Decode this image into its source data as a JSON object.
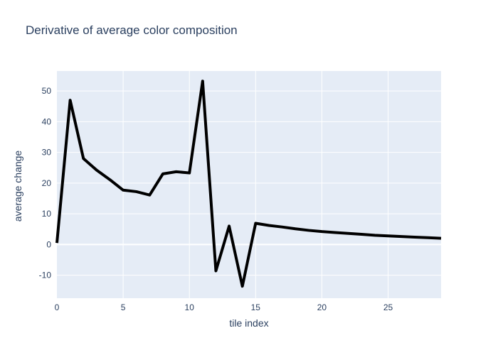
{
  "chart_data": {
    "type": "line",
    "title": "Derivative of average color composition",
    "xlabel": "tile index",
    "ylabel": "average change",
    "xlim": [
      0,
      29
    ],
    "ylim": [
      -17.5,
      56.5
    ],
    "x_ticks": [
      0,
      5,
      10,
      15,
      20,
      25
    ],
    "y_ticks": [
      -10,
      0,
      10,
      20,
      30,
      40,
      50
    ],
    "grid": true,
    "line_color": "#000000",
    "plot_bg": "#e5ecf6",
    "series": [
      {
        "x": [
          0,
          1,
          2,
          3,
          4,
          5,
          6,
          7,
          8,
          9,
          10,
          11,
          12,
          13,
          14,
          15,
          16,
          17,
          18,
          19,
          20,
          21,
          22,
          23,
          24,
          25,
          26,
          27,
          28,
          29
        ],
        "values": [
          0.5,
          47,
          28,
          24.2,
          21.1,
          17.7,
          17.2,
          16.1,
          23,
          23.7,
          23.3,
          53.2,
          -8.6,
          6,
          -13.6,
          6.9,
          6.2,
          5.7,
          5.1,
          4.6,
          4.2,
          3.9,
          3.6,
          3.3,
          3.0,
          2.8,
          2.6,
          2.4,
          2.2,
          2.0
        ]
      }
    ]
  }
}
